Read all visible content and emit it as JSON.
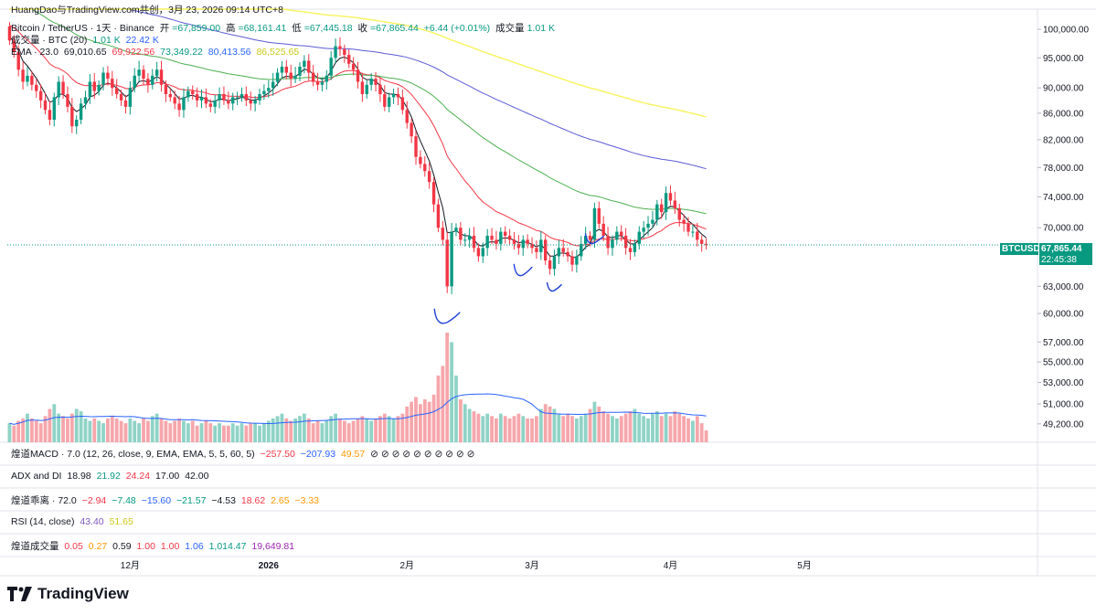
{
  "header": {
    "watermark": "HuangDao与TradingView.com共创，3月 23, 2026 09:14 UTC+8",
    "symbol": "Bitcoin / TetherUS · 1天 · Binance",
    "open_label": "开",
    "open": "=67,859.00",
    "high_label": "高",
    "high": "=68,161.41",
    "low_label": "低",
    "low": "=67,445.18",
    "close_label": "收",
    "close": "=67,865.44",
    "change": "+6.44 (+0.01%)",
    "vol_label": "成交量",
    "vol": "1.01 K",
    "volume_line_label": "成交量 · BTC (20)",
    "volume_line_v1": "1.01 K",
    "volume_line_v2": "22.42 K",
    "ema_label": "EMA · 23.0",
    "ema_values": [
      "69,010.65",
      "69,922.56",
      "73,349.22",
      "80,413.56",
      "86,525.65"
    ]
  },
  "price_axis": [
    "100,000.00",
    "95,000.00",
    "90,000.00",
    "86,000.00",
    "82,000.00",
    "78,000.00",
    "74,000.00",
    "70,000.00",
    "63,000.00",
    "60,000.00",
    "57,000.00",
    "55,000.00",
    "53,000.00",
    "51,000.00",
    "49,200.00"
  ],
  "last_price": {
    "symbol": "BTCUSDT",
    "price": "67,865.44",
    "countdown": "22:45:38"
  },
  "time_axis": [
    "12月",
    "2026",
    "2月",
    "3月",
    "4月",
    "5月"
  ],
  "indicators": {
    "macd": {
      "label": "煌道MACD · 7.0 (12, 26, close, 9, EMA, EMA, 5, 5, 60, 5)",
      "v1": "−257.50",
      "v2": "−207.93",
      "v3": "49.57",
      "circles": "⊘ ⊘ ⊘ ⊘ ⊘ ⊘ ⊘ ⊘ ⊘ ⊘"
    },
    "adx": {
      "label": "ADX and DI",
      "v1": "18.98",
      "v2": "21.92",
      "v3": "24.24",
      "v4": "17.00",
      "v5": "42.00"
    },
    "bias": {
      "label": "煌道乖离 · 72.0",
      "v1": "−2.94",
      "v2": "−7.48",
      "v3": "−15.60",
      "v4": "−21.57",
      "v5": "−4.53",
      "v6": "18.62",
      "v7": "2.65",
      "v8": "−3.33"
    },
    "rsi": {
      "label": "RSI (14, close)",
      "v1": "43.40",
      "v2": "51.65"
    },
    "vol": {
      "label": "煌道成交量",
      "v1": "0.05",
      "v2": "0.27",
      "v3": "0.59",
      "v4": "1.00",
      "v5": "1.00",
      "v6": "1.06",
      "v7": "1,014.47",
      "v8": "19,649.81"
    }
  },
  "brand": "TradingView",
  "colors": {
    "up": "#089981",
    "down": "#f23645",
    "ema1": "#131722",
    "ema2": "#f23645",
    "ema3": "#4caf50",
    "ema4": "#5b5bd6",
    "ema5": "#f7f35a",
    "annot": "#2141d8"
  },
  "chart_data": {
    "type": "candlestick",
    "title": "Bitcoin / TetherUS · 1天 · Binance",
    "ylabel": "USDT",
    "ylim": [
      47600,
      102000
    ],
    "x_domain": [
      0,
      158
    ],
    "month_ticks": [
      {
        "label": "12月",
        "x": 27
      },
      {
        "label": "2026",
        "x": 58
      },
      {
        "label": "2月",
        "x": 89
      },
      {
        "label": "3月",
        "x": 117
      },
      {
        "label": "4月",
        "x": 148
      },
      {
        "label": "5月",
        "x": 178
      }
    ],
    "closes": [
      98000,
      96000,
      93000,
      91000,
      92000,
      90500,
      89500,
      88000,
      86500,
      85000,
      88500,
      91000,
      89000,
      87000,
      84000,
      85000,
      87500,
      88500,
      91000,
      89500,
      90500,
      92500,
      91500,
      90000,
      89000,
      88000,
      87000,
      90000,
      92000,
      93000,
      91500,
      90500,
      92000,
      93000,
      90500,
      89000,
      88500,
      87500,
      86500,
      88500,
      89500,
      89000,
      88000,
      88500,
      87500,
      87000,
      88000,
      89000,
      88000,
      87500,
      88500,
      88500,
      89000,
      88000,
      87500,
      88000,
      89000,
      89500,
      90000,
      91000,
      92500,
      93500,
      92500,
      91500,
      92000,
      93500,
      94500,
      92500,
      91000,
      90500,
      91000,
      92000,
      95000,
      97000,
      96500,
      95500,
      94000,
      93000,
      91000,
      89000,
      90500,
      91500,
      90500,
      89000,
      87000,
      88500,
      89000,
      88500,
      86500,
      84500,
      82500,
      79500,
      78500,
      77500,
      76000,
      73000,
      70000,
      68500,
      63000,
      69500,
      70000,
      68500,
      68500,
      69000,
      67500,
      66500,
      67500,
      69000,
      68500,
      68000,
      69500,
      69000,
      68500,
      68000,
      67500,
      68500,
      68000,
      67500,
      67000,
      68500,
      66000,
      65000,
      66500,
      67500,
      67000,
      66500,
      65500,
      66500,
      68000,
      69000,
      68500,
      72500,
      70500,
      69000,
      67500,
      68500,
      69500,
      69000,
      67500,
      67000,
      68000,
      69500,
      70000,
      70500,
      71000,
      73000,
      72000,
      74500,
      73500,
      72500,
      71000,
      70500,
      69500,
      69500,
      68500,
      68000,
      67865
    ],
    "volumes": [
      0.4,
      0.35,
      0.45,
      0.5,
      0.6,
      0.5,
      0.45,
      0.4,
      0.55,
      0.7,
      0.8,
      0.6,
      0.55,
      0.5,
      0.6,
      0.7,
      0.65,
      0.5,
      0.45,
      0.5,
      0.45,
      0.4,
      0.5,
      0.55,
      0.5,
      0.45,
      0.4,
      0.5,
      0.45,
      0.4,
      0.5,
      0.45,
      0.55,
      0.6,
      0.5,
      0.45,
      0.4,
      0.45,
      0.5,
      0.45,
      0.4,
      0.45,
      0.35,
      0.4,
      0.45,
      0.4,
      0.35,
      0.4,
      0.35,
      0.35,
      0.4,
      0.35,
      0.4,
      0.35,
      0.4,
      0.4,
      0.35,
      0.4,
      0.45,
      0.5,
      0.55,
      0.6,
      0.5,
      0.45,
      0.5,
      0.55,
      0.6,
      0.5,
      0.4,
      0.45,
      0.4,
      0.45,
      0.55,
      0.6,
      0.5,
      0.45,
      0.4,
      0.45,
      0.5,
      0.55,
      0.5,
      0.45,
      0.5,
      0.55,
      0.6,
      0.55,
      0.5,
      0.55,
      0.6,
      0.75,
      0.85,
      0.95,
      0.8,
      0.9,
      0.85,
      1.0,
      1.4,
      1.6,
      2.3,
      2.1,
      1.4,
      0.9,
      0.8,
      0.7,
      0.65,
      0.6,
      0.55,
      0.6,
      0.55,
      0.5,
      0.6,
      0.55,
      0.5,
      0.55,
      0.6,
      0.55,
      0.5,
      0.5,
      0.55,
      0.7,
      0.8,
      0.75,
      0.7,
      0.6,
      0.55,
      0.6,
      0.55,
      0.5,
      0.55,
      0.6,
      0.7,
      0.85,
      0.75,
      0.65,
      0.6,
      0.55,
      0.5,
      0.55,
      0.6,
      0.65,
      0.7,
      0.6,
      0.55,
      0.5,
      0.6,
      0.65,
      0.55,
      0.6,
      0.55,
      0.65,
      0.6,
      0.55,
      0.5,
      0.45,
      0.55,
      0.4,
      0.25
    ],
    "ema_lines": [
      {
        "name": "EMA 1",
        "color": "#131722",
        "value": "69,010.65"
      },
      {
        "name": "EMA 2",
        "color": "#f23645",
        "value": "69,922.56"
      },
      {
        "name": "EMA 3",
        "color": "#4caf50",
        "value": "73,349.22"
      },
      {
        "name": "EMA 4",
        "color": "#5b5bd6",
        "value": "80,413.56"
      },
      {
        "name": "EMA 5",
        "color": "#f7f35a",
        "value": "86,525.65"
      }
    ],
    "last_price": 67865.44
  }
}
